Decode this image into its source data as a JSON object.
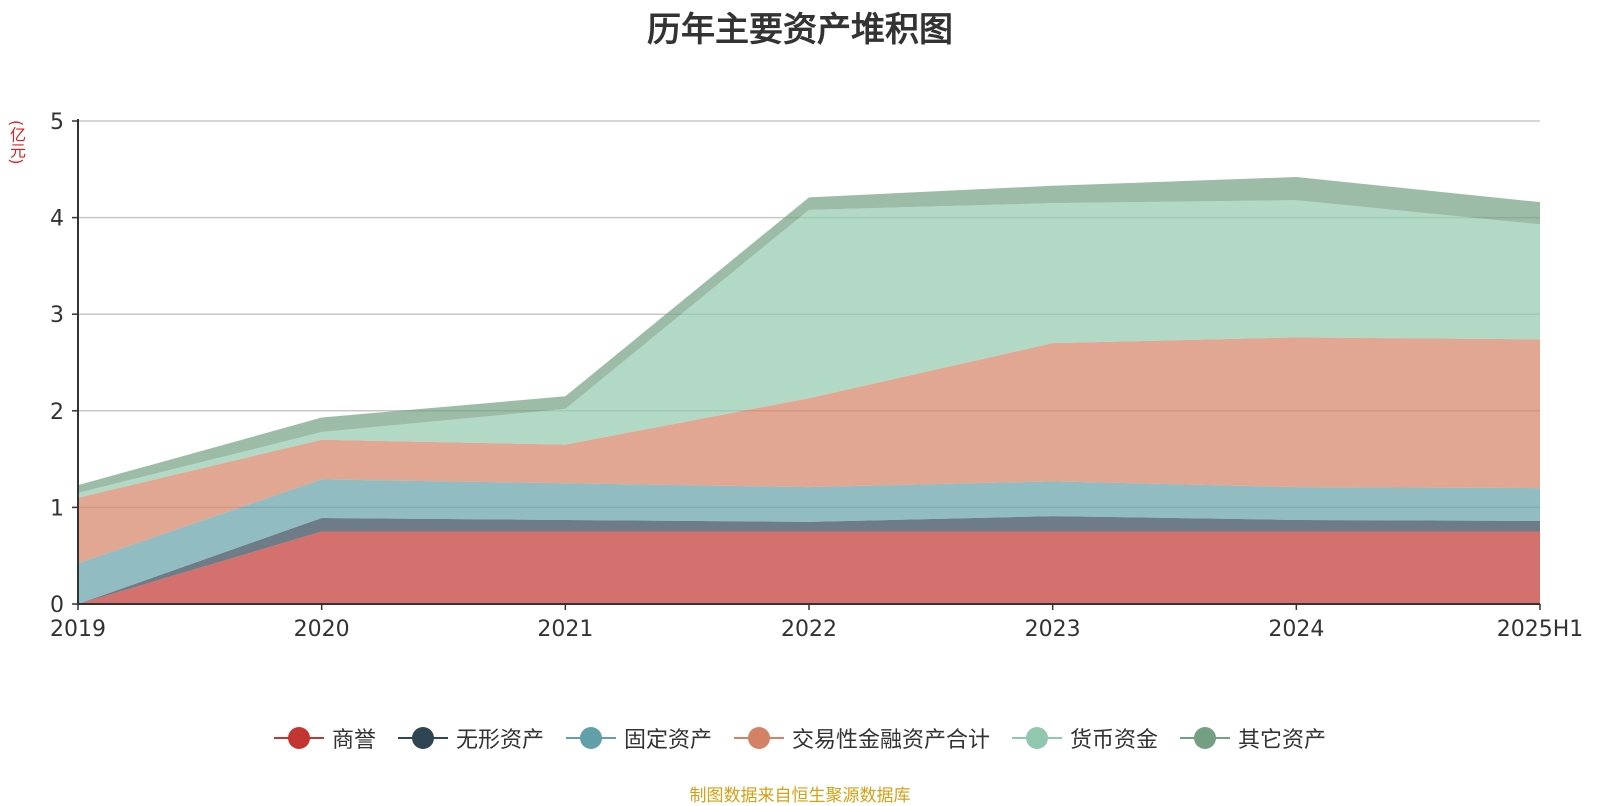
{
  "chart_data": {
    "type": "area",
    "stacked": true,
    "title": "历年主要资产堆积图",
    "unit_label": "(亿元)",
    "categories": [
      "2019",
      "2020",
      "2021",
      "2022",
      "2023",
      "2024",
      "2025H1"
    ],
    "ylim": [
      0,
      5
    ],
    "yticks": [
      "0",
      "1",
      "2",
      "3",
      "4",
      "5"
    ],
    "grid": true,
    "legend_position": "bottom",
    "series": [
      {
        "name": "商誉",
        "color": "#c23531",
        "values": [
          0.0,
          0.75,
          0.75,
          0.75,
          0.75,
          0.75,
          0.75
        ]
      },
      {
        "name": "无形资产",
        "color": "#2f4554",
        "values": [
          0.0,
          0.14,
          0.12,
          0.1,
          0.16,
          0.12,
          0.11
        ]
      },
      {
        "name": "固定资产",
        "color": "#61a0a8",
        "values": [
          0.42,
          0.4,
          0.38,
          0.36,
          0.36,
          0.34,
          0.34
        ]
      },
      {
        "name": "交易性金融资产合计",
        "color": "#d48265",
        "values": [
          0.68,
          0.41,
          0.4,
          0.92,
          1.43,
          1.55,
          1.54
        ]
      },
      {
        "name": "货币资金",
        "color": "#91c7ae",
        "values": [
          0.05,
          0.08,
          0.37,
          1.95,
          1.45,
          1.42,
          1.19
        ]
      },
      {
        "name": "其它资产",
        "color": "#749f83",
        "values": [
          0.08,
          0.15,
          0.13,
          0.13,
          0.18,
          0.24,
          0.23
        ]
      }
    ]
  },
  "source_note": "制图数据来自恒生聚源数据库"
}
